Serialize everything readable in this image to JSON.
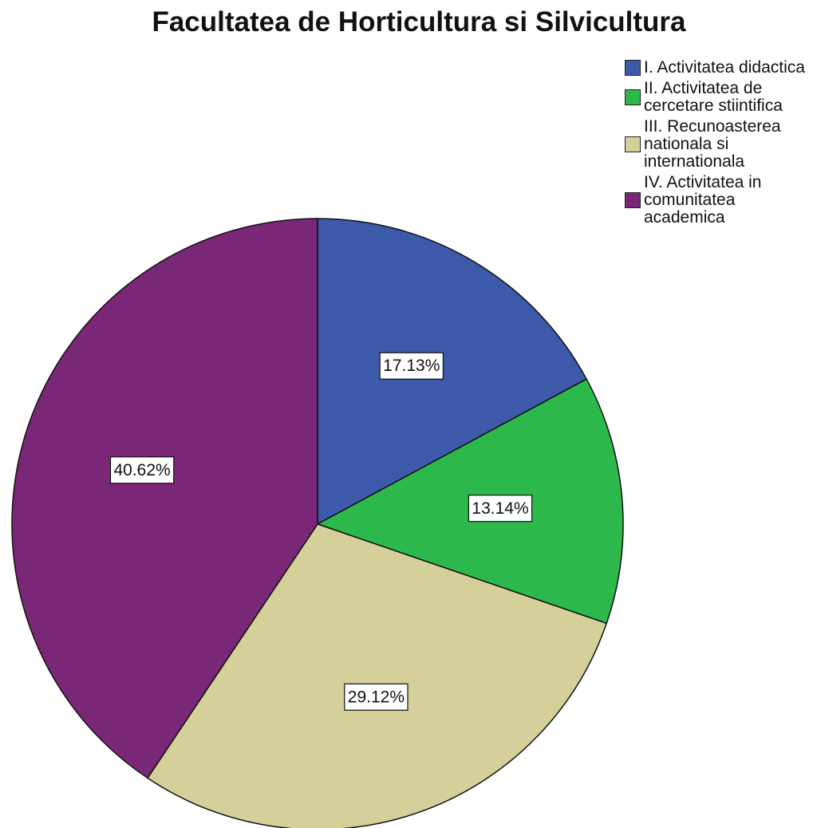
{
  "chart_data": {
    "type": "pie",
    "title": "Facultatea de Horticultura si Silvicultura",
    "categories": [
      "I. Activitatea didactica",
      "II. Activitatea de cercetare stiintifica",
      "III. Recunoasterea nationala si internationala",
      "IV. Activitatea in comunitatea academica"
    ],
    "values": [
      17.13,
      13.14,
      29.12,
      40.62
    ],
    "value_labels": [
      "17.13%",
      "13.14%",
      "29.12%",
      "40.62%"
    ],
    "colors": [
      "#3d59a9",
      "#2db84b",
      "#d5d09a",
      "#7b2778"
    ],
    "legend": "right"
  }
}
